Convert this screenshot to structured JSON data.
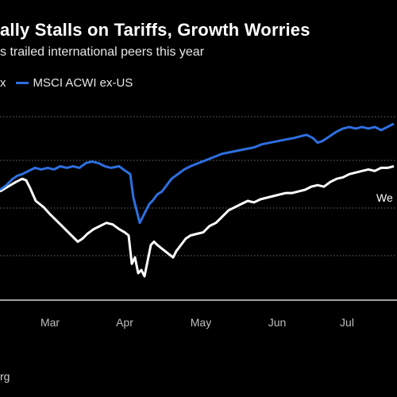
{
  "title": "ally Stalls on Tariffs, Growth Worries",
  "subtitle": "s trailed international peers this year",
  "legend": [
    {
      "label": "x",
      "color": "#ffffff"
    },
    {
      "label": "MSCI ACWI ex-US",
      "color": "#2e6fe0"
    }
  ],
  "source": "rg",
  "chart_data": {
    "type": "line",
    "x_ticks": [
      "Mar",
      "Apr",
      "May",
      "Jun",
      "Jul"
    ],
    "grid": true,
    "series": [
      {
        "name": "x",
        "color": "#ffffff",
        "end_label": "We",
        "values": [
          [
            0,
            0.46
          ],
          [
            10,
            0.43
          ],
          [
            20,
            0.4
          ],
          [
            28,
            0.38
          ],
          [
            33,
            0.39
          ],
          [
            38,
            0.44
          ],
          [
            45,
            0.52
          ],
          [
            55,
            0.56
          ],
          [
            62,
            0.6
          ],
          [
            70,
            0.64
          ],
          [
            78,
            0.68
          ],
          [
            86,
            0.72
          ],
          [
            92,
            0.75
          ],
          [
            98,
            0.78
          ],
          [
            104,
            0.76
          ],
          [
            110,
            0.73
          ],
          [
            118,
            0.7
          ],
          [
            126,
            0.68
          ],
          [
            134,
            0.66
          ],
          [
            142,
            0.67
          ],
          [
            150,
            0.7
          ],
          [
            157,
            0.72
          ],
          [
            162,
            0.74
          ],
          [
            166,
            0.92
          ],
          [
            170,
            0.88
          ],
          [
            174,
            0.98
          ],
          [
            178,
            0.96
          ],
          [
            182,
            1.0
          ],
          [
            186,
            0.9
          ],
          [
            190,
            0.8
          ],
          [
            194,
            0.78
          ],
          [
            198,
            0.8
          ],
          [
            203,
            0.82
          ],
          [
            208,
            0.84
          ],
          [
            213,
            0.86
          ],
          [
            218,
            0.88
          ],
          [
            222,
            0.84
          ],
          [
            228,
            0.8
          ],
          [
            234,
            0.76
          ],
          [
            240,
            0.74
          ],
          [
            248,
            0.73
          ],
          [
            256,
            0.72
          ],
          [
            264,
            0.68
          ],
          [
            272,
            0.66
          ],
          [
            280,
            0.62
          ],
          [
            288,
            0.58
          ],
          [
            296,
            0.56
          ],
          [
            304,
            0.54
          ],
          [
            312,
            0.52
          ],
          [
            320,
            0.53
          ],
          [
            328,
            0.51
          ],
          [
            336,
            0.5
          ],
          [
            344,
            0.49
          ],
          [
            352,
            0.48
          ],
          [
            360,
            0.47
          ],
          [
            368,
            0.47
          ],
          [
            376,
            0.46
          ],
          [
            384,
            0.45
          ],
          [
            392,
            0.43
          ],
          [
            400,
            0.42
          ],
          [
            408,
            0.43
          ],
          [
            416,
            0.4
          ],
          [
            424,
            0.38
          ],
          [
            432,
            0.37
          ],
          [
            440,
            0.35
          ],
          [
            448,
            0.34
          ],
          [
            456,
            0.33
          ],
          [
            464,
            0.32
          ],
          [
            472,
            0.33
          ],
          [
            480,
            0.31
          ],
          [
            488,
            0.31
          ],
          [
            496,
            0.3
          ]
        ]
      },
      {
        "name": "MSCI ACWI ex-US",
        "color": "#2e6fe0",
        "values": [
          [
            0,
            0.45
          ],
          [
            8,
            0.42
          ],
          [
            16,
            0.38
          ],
          [
            22,
            0.36
          ],
          [
            28,
            0.35
          ],
          [
            36,
            0.33
          ],
          [
            44,
            0.31
          ],
          [
            52,
            0.32
          ],
          [
            60,
            0.31
          ],
          [
            68,
            0.32
          ],
          [
            76,
            0.3
          ],
          [
            84,
            0.31
          ],
          [
            92,
            0.3
          ],
          [
            100,
            0.31
          ],
          [
            108,
            0.28
          ],
          [
            116,
            0.27
          ],
          [
            124,
            0.28
          ],
          [
            132,
            0.3
          ],
          [
            140,
            0.31
          ],
          [
            150,
            0.3
          ],
          [
            158,
            0.33
          ],
          [
            164,
            0.35
          ],
          [
            168,
            0.5
          ],
          [
            172,
            0.58
          ],
          [
            176,
            0.66
          ],
          [
            180,
            0.62
          ],
          [
            184,
            0.58
          ],
          [
            188,
            0.54
          ],
          [
            192,
            0.52
          ],
          [
            198,
            0.48
          ],
          [
            204,
            0.46
          ],
          [
            210,
            0.42
          ],
          [
            216,
            0.38
          ],
          [
            224,
            0.35
          ],
          [
            232,
            0.32
          ],
          [
            240,
            0.3
          ],
          [
            250,
            0.28
          ],
          [
            260,
            0.26
          ],
          [
            270,
            0.24
          ],
          [
            280,
            0.22
          ],
          [
            290,
            0.21
          ],
          [
            300,
            0.2
          ],
          [
            310,
            0.19
          ],
          [
            320,
            0.18
          ],
          [
            330,
            0.16
          ],
          [
            340,
            0.15
          ],
          [
            350,
            0.14
          ],
          [
            360,
            0.13
          ],
          [
            370,
            0.12
          ],
          [
            378,
            0.11
          ],
          [
            386,
            0.1
          ],
          [
            394,
            0.12
          ],
          [
            400,
            0.15
          ],
          [
            406,
            0.14
          ],
          [
            412,
            0.12
          ],
          [
            418,
            0.1
          ],
          [
            424,
            0.08
          ],
          [
            432,
            0.06
          ],
          [
            440,
            0.05
          ],
          [
            448,
            0.06
          ],
          [
            456,
            0.05
          ],
          [
            464,
            0.06
          ],
          [
            472,
            0.05
          ],
          [
            480,
            0.07
          ],
          [
            488,
            0.05
          ],
          [
            496,
            0.03
          ]
        ]
      }
    ]
  }
}
